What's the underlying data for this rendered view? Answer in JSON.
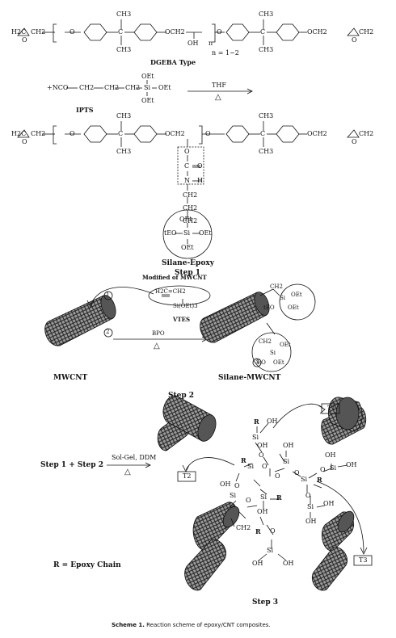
{
  "labels": {
    "dgeba_type": "DGEBA Type",
    "n_range": "n = 1~2",
    "nco": "+NCO",
    "ch2": "CH2",
    "oet": "OEt",
    "si": "Si",
    "thf": "THF",
    "delta": "△",
    "ipts": "IPTS",
    "silane_epoxy": "Silane-Epoxy",
    "step1": "Step 1",
    "modified_mwcnt": "Modified of MWCNT",
    "circle1": "1",
    "circle2": "2",
    "circle3": "3",
    "vtes": "VTES",
    "bpo": "BPO",
    "mwcnt": "MWCNT",
    "silane_mwcnt": "Silane-MWCNT",
    "step2": "Step 2",
    "step1_plus_step2": "Step 1 + Step 2",
    "sol_gel": "Sol-Gel, DDM",
    "r_def": "R = Epoxy Chain",
    "step3": "Step 3",
    "t1": "T1",
    "t2": "T2",
    "t3": "T3",
    "r": "R",
    "oh": "OH",
    "o": "O",
    "sioet3": "Si(OEt)3",
    "h2c_ch2": "H2C=CH2",
    "teo": "tEO",
    "eo": "EO",
    "ch3": "CH3",
    "c": "C",
    "n": "N",
    "h": "H",
    "h2c": "H2C",
    "och2": "OCH2",
    "n_sub": "n"
  },
  "caption": {
    "bold": "Scheme 1.",
    "text": " Reaction scheme of epoxy/CNT composites."
  }
}
